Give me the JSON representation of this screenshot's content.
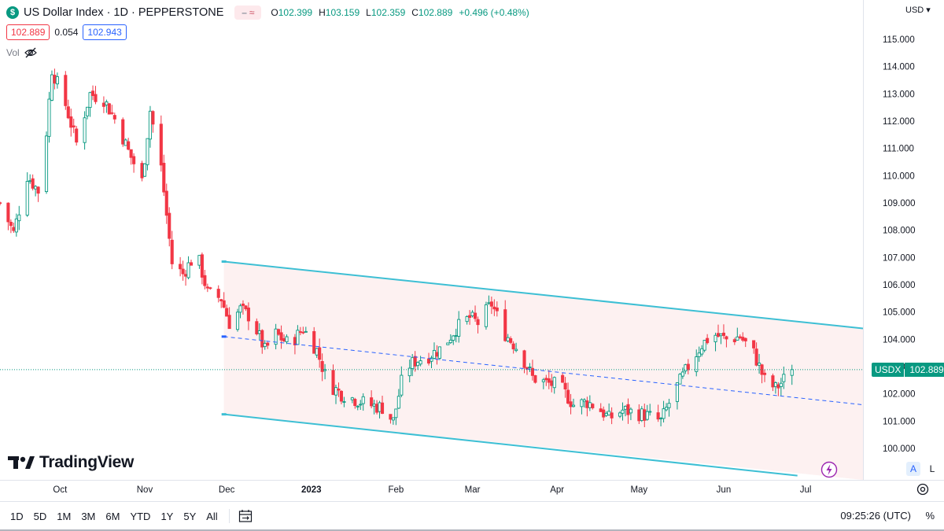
{
  "header": {
    "symbol_logo": "$",
    "title": "US Dollar Index · 1D · PEPPERSTONE",
    "ohlc": [
      {
        "k": "O",
        "v": "102.399"
      },
      {
        "k": "H",
        "v": "103.159"
      },
      {
        "k": "L",
        "v": "102.359"
      },
      {
        "k": "C",
        "v": "102.889"
      }
    ],
    "change": "+0.496 (+0.48%)",
    "sell_price": "102.889",
    "spread": "0.054",
    "buy_price": "102.943",
    "vol_label": "Vol",
    "currency": "USD"
  },
  "brand": "TradingView",
  "price_tag": {
    "symbol": "USDX",
    "value": "102.889"
  },
  "toolbar": {
    "timeframes": [
      "1D",
      "5D",
      "1M",
      "3M",
      "6M",
      "YTD",
      "1Y",
      "5Y",
      "All"
    ],
    "time": "09:25:26 (UTC)",
    "percent": "%",
    "auto_label": "A",
    "log_label": "L"
  },
  "icons": {
    "eye": "eye-crossed-icon",
    "calendar": "calendar-range-icon",
    "settings": "gear-icon",
    "flash": "lightning-icon"
  },
  "colors": {
    "up": "#089981",
    "down": "#f23645",
    "channel": "#3dbfd4",
    "mid": "#2962ff",
    "fill": "#fdeeee"
  },
  "chart_data": {
    "type": "candlestick",
    "symbol": "USDX",
    "timeframe": "1D",
    "y_axis": {
      "ticks": [
        "115.000",
        "114.000",
        "113.000",
        "112.000",
        "111.000",
        "110.000",
        "109.000",
        "108.000",
        "107.000",
        "106.000",
        "105.000",
        "104.000",
        "103.000",
        "102.000",
        "101.000",
        "100.000"
      ],
      "ylim": [
        99.1,
        115.6
      ]
    },
    "x_axis": {
      "ticks": [
        "Oct",
        "Nov",
        "Dec",
        "2023",
        "Feb",
        "Mar",
        "Apr",
        "May",
        "Jun",
        "Jul"
      ],
      "tick_dates": [
        "2022-10-01",
        "2022-11-01",
        "2022-12-01",
        "2023-01-01",
        "2023-02-01",
        "2023-03-01",
        "2023-04-01",
        "2023-05-01",
        "2023-06-01",
        "2023-07-01"
      ],
      "xlim": [
        "2022-09-09",
        "2023-07-22"
      ]
    },
    "last_price": 102.889,
    "close_path": [
      {
        "date": "2022-09-09",
        "close": 109.0
      },
      {
        "date": "2022-09-14",
        "close": 107.9
      },
      {
        "date": "2022-09-19",
        "close": 110.0
      },
      {
        "date": "2022-09-24",
        "close": 109.3
      },
      {
        "date": "2022-09-28",
        "close": 113.9
      },
      {
        "date": "2022-10-03",
        "close": 112.6
      },
      {
        "date": "2022-10-07",
        "close": 111.2
      },
      {
        "date": "2022-10-12",
        "close": 113.0
      },
      {
        "date": "2022-10-17",
        "close": 112.8
      },
      {
        "date": "2022-10-22",
        "close": 111.9
      },
      {
        "date": "2022-10-26",
        "close": 110.9
      },
      {
        "date": "2022-10-31",
        "close": 109.8
      },
      {
        "date": "2022-11-03",
        "close": 112.4
      },
      {
        "date": "2022-11-07",
        "close": 110.3
      },
      {
        "date": "2022-11-11",
        "close": 106.8
      },
      {
        "date": "2022-11-15",
        "close": 106.4
      },
      {
        "date": "2022-11-20",
        "close": 107.2
      },
      {
        "date": "2022-11-24",
        "close": 105.7
      },
      {
        "date": "2022-11-29",
        "close": 105.5
      },
      {
        "date": "2022-12-02",
        "close": 104.6
      },
      {
        "date": "2022-12-06",
        "close": 105.1
      },
      {
        "date": "2022-12-10",
        "close": 104.8
      },
      {
        "date": "2022-12-15",
        "close": 103.6
      },
      {
        "date": "2022-12-19",
        "close": 104.2
      },
      {
        "date": "2022-12-24",
        "close": 103.8
      },
      {
        "date": "2022-12-29",
        "close": 104.4
      },
      {
        "date": "2023-01-03",
        "close": 103.6
      },
      {
        "date": "2023-01-07",
        "close": 102.4
      },
      {
        "date": "2023-01-12",
        "close": 102.0
      },
      {
        "date": "2023-01-17",
        "close": 101.8
      },
      {
        "date": "2023-01-22",
        "close": 101.6
      },
      {
        "date": "2023-01-27",
        "close": 101.5
      },
      {
        "date": "2023-01-31",
        "close": 101.0
      },
      {
        "date": "2023-02-04",
        "close": 102.9
      },
      {
        "date": "2023-02-08",
        "close": 103.2
      },
      {
        "date": "2023-02-13",
        "close": 103.4
      },
      {
        "date": "2023-02-18",
        "close": 103.7
      },
      {
        "date": "2023-02-23",
        "close": 104.4
      },
      {
        "date": "2023-02-28",
        "close": 104.8
      },
      {
        "date": "2023-03-03",
        "close": 104.6
      },
      {
        "date": "2023-03-08",
        "close": 105.3
      },
      {
        "date": "2023-03-13",
        "close": 104.2
      },
      {
        "date": "2023-03-18",
        "close": 103.6
      },
      {
        "date": "2023-03-23",
        "close": 102.6
      },
      {
        "date": "2023-03-28",
        "close": 102.4
      },
      {
        "date": "2023-04-02",
        "close": 102.3
      },
      {
        "date": "2023-04-07",
        "close": 101.6
      },
      {
        "date": "2023-04-12",
        "close": 101.7
      },
      {
        "date": "2023-04-16",
        "close": 101.5
      },
      {
        "date": "2023-04-20",
        "close": 101.1
      },
      {
        "date": "2023-04-25",
        "close": 101.4
      },
      {
        "date": "2023-04-30",
        "close": 101.3
      },
      {
        "date": "2023-05-04",
        "close": 101.2
      },
      {
        "date": "2023-05-09",
        "close": 101.0
      },
      {
        "date": "2023-05-14",
        "close": 102.1
      },
      {
        "date": "2023-05-19",
        "close": 103.0
      },
      {
        "date": "2023-05-24",
        "close": 103.8
      },
      {
        "date": "2023-05-28",
        "close": 104.2
      },
      {
        "date": "2023-06-02",
        "close": 104.0
      },
      {
        "date": "2023-06-07",
        "close": 104.1
      },
      {
        "date": "2023-06-12",
        "close": 103.5
      },
      {
        "date": "2023-06-16",
        "close": 102.5
      },
      {
        "date": "2023-06-20",
        "close": 102.2
      },
      {
        "date": "2023-06-22",
        "close": 102.4
      },
      {
        "date": "2023-06-26",
        "close": 102.9
      }
    ],
    "channel": {
      "upper": [
        {
          "date": "2022-11-30",
          "value": 106.85
        },
        {
          "date": "2023-07-22",
          "value": 104.4
        }
      ],
      "middle": [
        {
          "date": "2022-11-30",
          "value": 104.1
        },
        {
          "date": "2023-07-22",
          "value": 101.6
        }
      ],
      "lower": [
        {
          "date": "2022-11-30",
          "value": 101.25
        },
        {
          "date": "2023-06-28",
          "value": 99.0
        }
      ]
    }
  }
}
